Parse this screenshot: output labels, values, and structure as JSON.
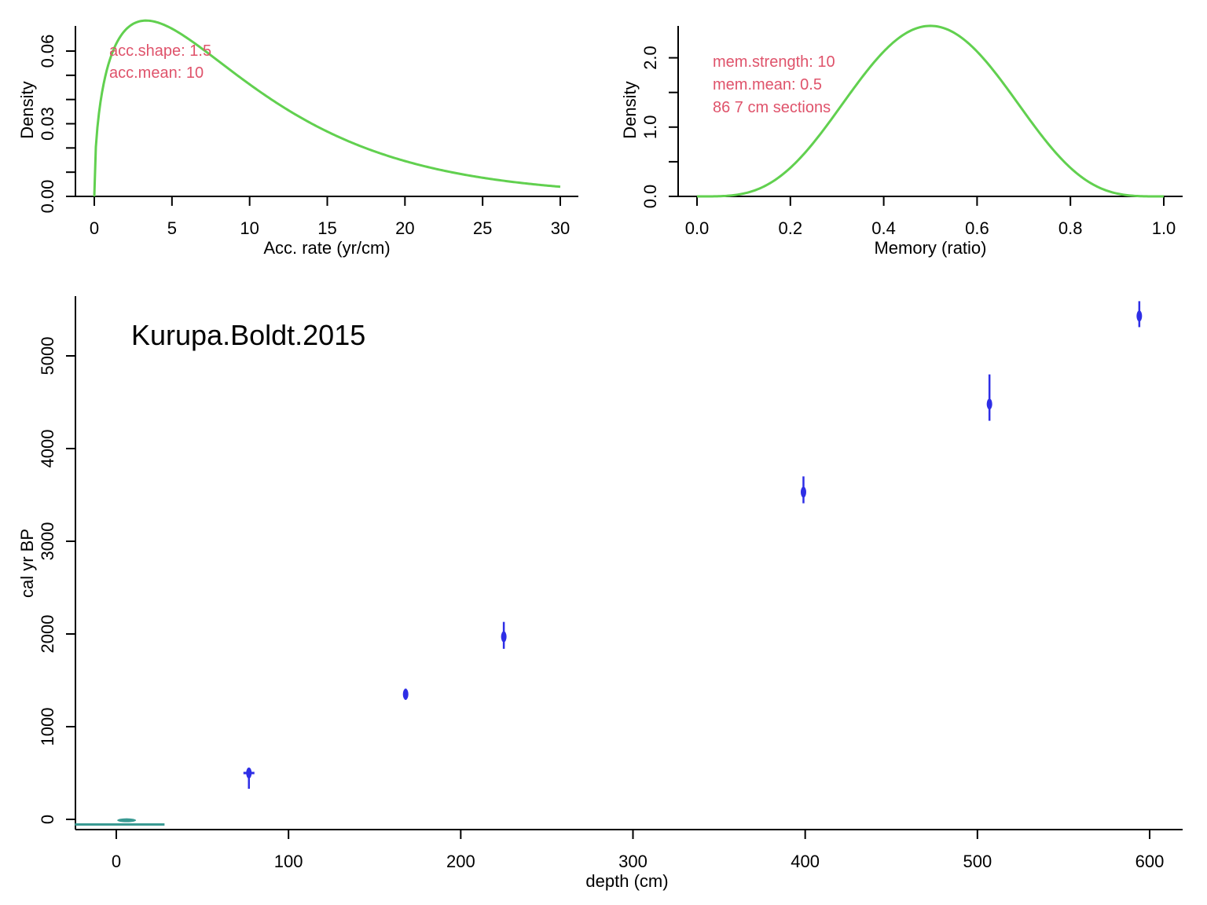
{
  "chart_data": [
    {
      "id": "acc",
      "type": "line",
      "xlabel": "Acc. rate (yr/cm)",
      "ylabel": "Density",
      "xlim": [
        0,
        30
      ],
      "ylim": [
        0,
        0.072
      ],
      "xticks": [
        0,
        5,
        10,
        15,
        20,
        25,
        30
      ],
      "yticks_labeled": [
        "0.00",
        "0.03",
        "0.06"
      ],
      "yticks_labeled_values": [
        0,
        0.03,
        0.06
      ],
      "yticks_minor": [
        0.01,
        0.02,
        0.04,
        0.05
      ],
      "curve": {
        "kind": "gamma",
        "shape": 1.5,
        "mean": 10,
        "from": 0,
        "to": 30,
        "color": "#61D04F"
      },
      "annotations": [
        "acc.shape:  1.5",
        "acc.mean:  10"
      ],
      "annotation_color": "#DF536B"
    },
    {
      "id": "mem",
      "type": "line",
      "xlabel": "Memory (ratio)",
      "ylabel": "Density",
      "xlim": [
        0,
        1
      ],
      "ylim": [
        0,
        2.46
      ],
      "xticks": [
        "0.0",
        "0.2",
        "0.4",
        "0.6",
        "0.8",
        "1.0"
      ],
      "xticks_values": [
        0,
        0.2,
        0.4,
        0.6,
        0.8,
        1.0
      ],
      "yticks_labeled": [
        "0.0",
        "1.0",
        "2.0"
      ],
      "yticks_labeled_values": [
        0,
        1.0,
        2.0
      ],
      "yticks_minor": [
        0.5,
        1.5
      ],
      "curve": {
        "kind": "beta",
        "strength": 10,
        "mean": 0.5,
        "from": 0,
        "to": 1,
        "color": "#61D04F"
      },
      "annotations": [
        "mem.strength: 10",
        "mem.mean: 0.5",
        "86 7 cm sections"
      ],
      "annotation_color": "#DF536B"
    },
    {
      "id": "age-depth",
      "type": "scatter",
      "title": "Kurupa.Boldt.2015",
      "xlabel": "depth (cm)",
      "ylabel": "cal yr  BP",
      "xlim": [
        -24,
        620
      ],
      "ylim": [
        -100,
        5650
      ],
      "xticks": [
        0,
        100,
        200,
        300,
        400,
        500,
        600
      ],
      "yticks": [
        0,
        1000,
        2000,
        3000,
        4000,
        5000
      ],
      "dates_color": "#2E2EE6",
      "dates": [
        {
          "depth": 77,
          "age": 500,
          "low": 330,
          "high": 530
        },
        {
          "depth": 168,
          "age": 1350,
          "low": 1290,
          "high": 1410
        },
        {
          "depth": 225,
          "age": 1970,
          "low": 1840,
          "high": 2130
        },
        {
          "depth": 399,
          "age": 3530,
          "low": 3410,
          "high": 3700
        },
        {
          "depth": 507,
          "age": 4480,
          "low": 4300,
          "high": 4800
        },
        {
          "depth": 594,
          "age": 5430,
          "low": 5310,
          "high": 5590
        }
      ],
      "surface": {
        "depth": 6,
        "age": -10,
        "line_from_depth": -24,
        "line_to_depth": 28,
        "line_age": -55,
        "color": "#3A9A93"
      }
    }
  ]
}
